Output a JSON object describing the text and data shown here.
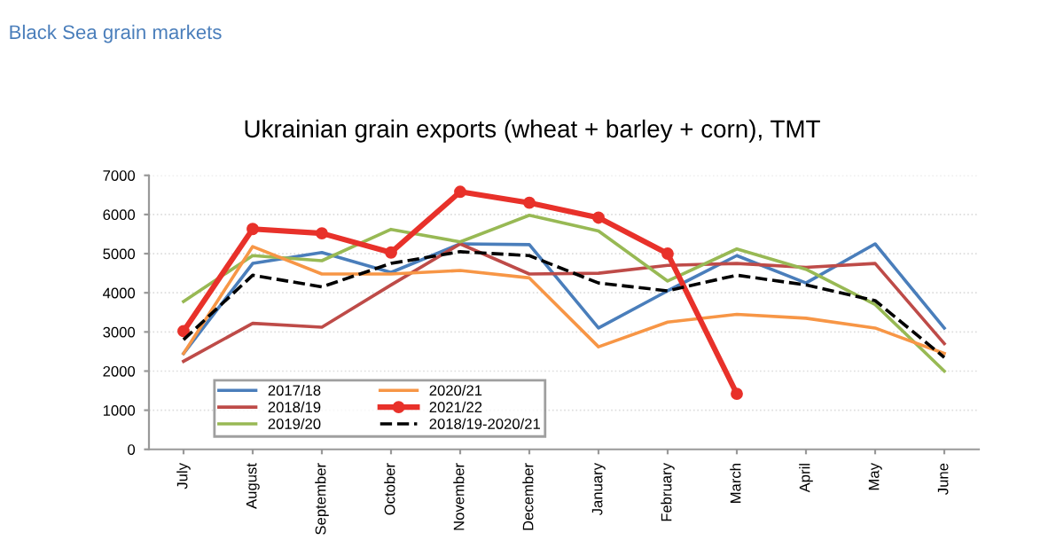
{
  "chart_data": {
    "type": "line",
    "title": "Ukrainian grain exports (wheat + barley + corn), TMT",
    "annotations": [
      "Black Sea grain markets"
    ],
    "categories": [
      "July",
      "August",
      "September",
      "October",
      "November",
      "December",
      "January",
      "February",
      "March",
      "April",
      "May",
      "June"
    ],
    "series": [
      {
        "name": "2017/18",
        "color": "#4a7ebb",
        "values": [
          2450,
          4750,
          5030,
          4520,
          5250,
          5230,
          3100,
          4050,
          4950,
          4250,
          5250,
          3100
        ]
      },
      {
        "name": "2018/19",
        "color": "#be4b48",
        "values": [
          2250,
          3220,
          3120,
          4200,
          5250,
          4480,
          4500,
          4700,
          4750,
          4650,
          4750,
          2700
        ]
      },
      {
        "name": "2019/20",
        "color": "#98b954",
        "values": [
          3780,
          4950,
          4820,
          5620,
          5300,
          5980,
          5580,
          4300,
          5120,
          4600,
          3700,
          2000
        ]
      },
      {
        "name": "2020/21",
        "color": "#f79646",
        "values": [
          2450,
          5180,
          4480,
          4480,
          4570,
          4380,
          2620,
          3250,
          3450,
          3350,
          3100,
          2450
        ]
      },
      {
        "name": "2021/22",
        "color": "#e8312a",
        "marker": "circle",
        "values": [
          3020,
          5630,
          5520,
          5030,
          6580,
          6300,
          5920,
          5000,
          1420,
          null,
          null,
          null
        ]
      },
      {
        "name": "2018/19-2020/21",
        "color": "#000000",
        "line_style": "dashed",
        "values": [
          2800,
          4450,
          4150,
          4750,
          5050,
          4950,
          4250,
          4050,
          4450,
          4200,
          3800,
          2350
        ]
      }
    ],
    "ylim": [
      0,
      7000
    ],
    "yticks": [
      0,
      1000,
      2000,
      3000,
      4000,
      5000,
      6000,
      7000
    ],
    "grid": "y",
    "legend": "bottom left"
  }
}
